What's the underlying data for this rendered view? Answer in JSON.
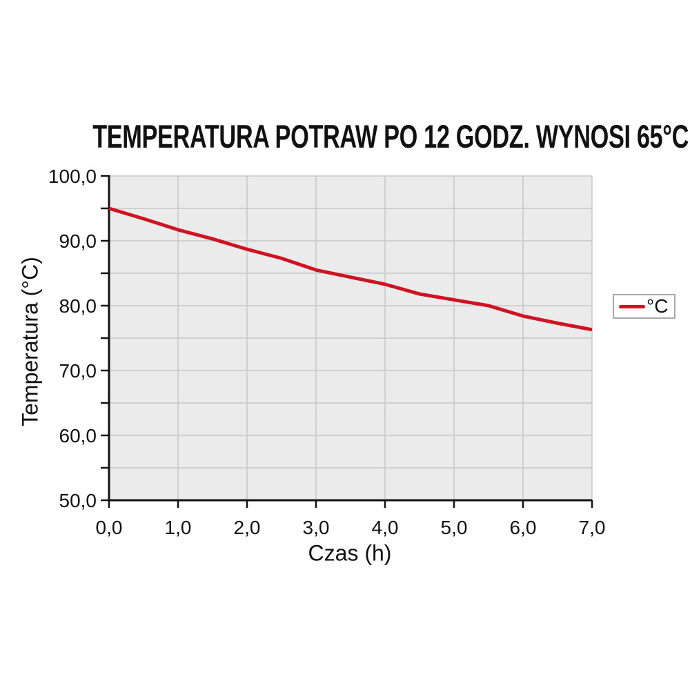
{
  "title": "TEMPERATURA POTRAW PO 12 GODZ. WYNOSI 65°C",
  "legend": {
    "label": "°C"
  },
  "axes": {
    "x_title": "Czas (h)",
    "y_title": "Temperatura (°C)"
  },
  "chart_data": {
    "type": "line",
    "title": "TEMPERATURA POTRAW PO 12 GODZ. WYNOSI 65°C",
    "xlabel": "Czas (h)",
    "ylabel": "Temperatura (°C)",
    "x": [
      0,
      0.5,
      1,
      1.5,
      2,
      2.5,
      3,
      3.5,
      4,
      4.5,
      5,
      5.5,
      6,
      6.5,
      7
    ],
    "series": [
      {
        "name": "°C",
        "color": "#cf1322",
        "values": [
          95.0,
          93.4,
          91.7,
          90.3,
          88.7,
          87.3,
          85.5,
          84.4,
          83.3,
          81.8,
          80.9,
          80.0,
          78.4,
          77.3,
          76.3
        ]
      }
    ],
    "xlim": [
      0,
      7
    ],
    "ylim": [
      50,
      100
    ],
    "x_tick_values": [
      0,
      1,
      2,
      3,
      4,
      5,
      6,
      7
    ],
    "x_tick_labels": [
      "0,0",
      "1,0",
      "2,0",
      "3,0",
      "4,0",
      "5,0",
      "6,0",
      "7,0"
    ],
    "y_tick_values": [
      50,
      60,
      70,
      80,
      90,
      100
    ],
    "y_tick_labels": [
      "50,0",
      "60,0",
      "70,0",
      "80,0",
      "90,0",
      "100,0"
    ],
    "y_minor_step": 5,
    "x_grid_step": 1,
    "grid_on": true,
    "legend_position": "right",
    "colors": {
      "plot_background": "#ebebeb",
      "gridline": "#c8c8c8",
      "axis": "#111111",
      "line": "#cf1322"
    }
  }
}
